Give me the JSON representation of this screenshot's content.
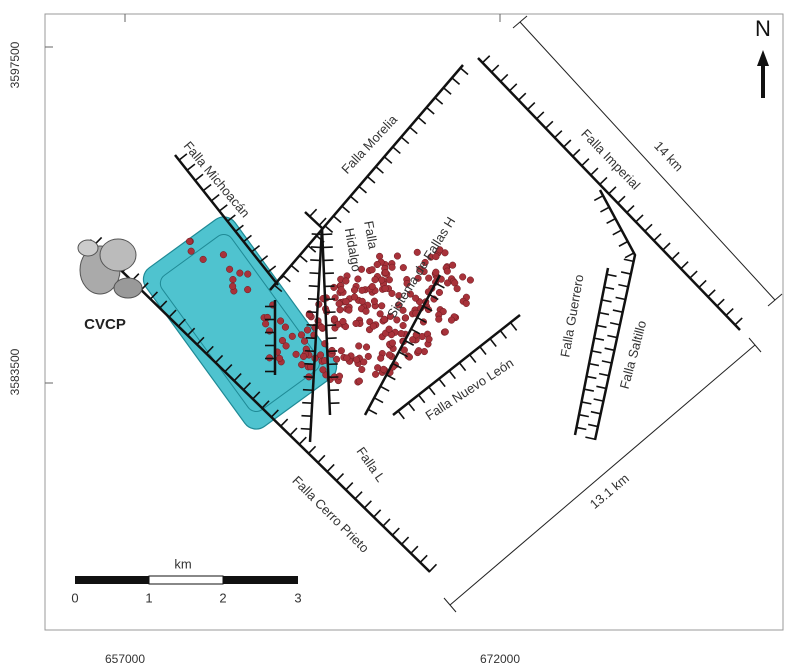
{
  "map": {
    "north": "N",
    "coordinates": {
      "y": [
        3597500,
        3583500
      ],
      "x": [
        657000,
        672000
      ]
    },
    "site": "CVCP",
    "faults": {
      "michoacan": "Falla Michoacán",
      "morelia": "Falla Morelia",
      "hidalgo_1": "Falla",
      "hidalgo_2": "Hidalgo",
      "fallas_h": "Sistema de Fallas H",
      "imperial": "Falla Imperial",
      "nuevo_leon": "Falla Nuevo León",
      "guerrero": "Falla Guerrero",
      "saltillo": "Falla Saltillo",
      "l": "Falla L",
      "cerro_prieto": "Falla Cerro Prieto"
    },
    "distances": [
      "14 km",
      "13.1 km"
    ],
    "scale": {
      "unit": "km",
      "ticks": [
        0,
        1,
        2,
        3
      ]
    }
  }
}
